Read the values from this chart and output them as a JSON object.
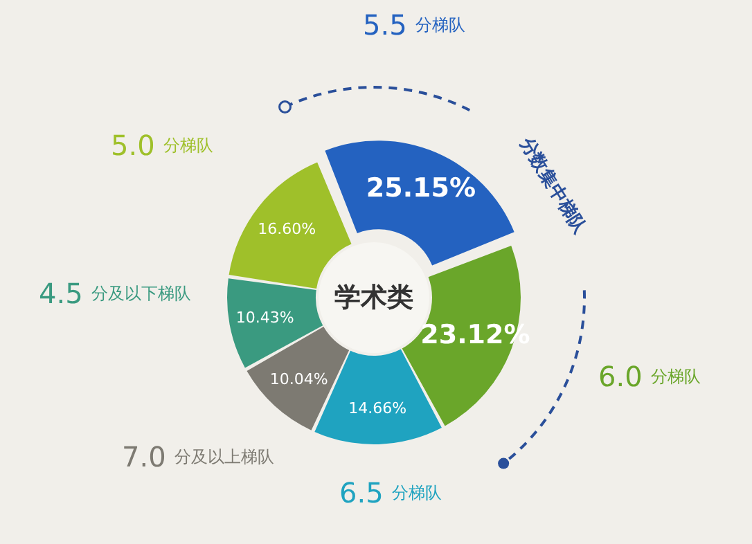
{
  "chart_data": {
    "type": "donut",
    "title": "学术类",
    "categories": [
      "5.5 分梯队",
      "6.0 分梯队",
      "6.5 分梯队",
      "7.0 分及以上梯队",
      "4.5 分及以下梯队",
      "5.0 分梯队"
    ],
    "values": [
      25.15,
      23.12,
      14.66,
      10.04,
      10.43,
      16.6
    ],
    "value_labels": [
      "25.15%",
      "23.12%",
      "14.66%",
      "10.04%",
      "10.43%",
      "16.60%"
    ],
    "colors": [
      "#2462c0",
      "#6aa62a",
      "#1fa3c0",
      "#7d7a72",
      "#3a9a80",
      "#9fc02a"
    ],
    "annotations": [
      "分数集中梯队"
    ]
  }
}
